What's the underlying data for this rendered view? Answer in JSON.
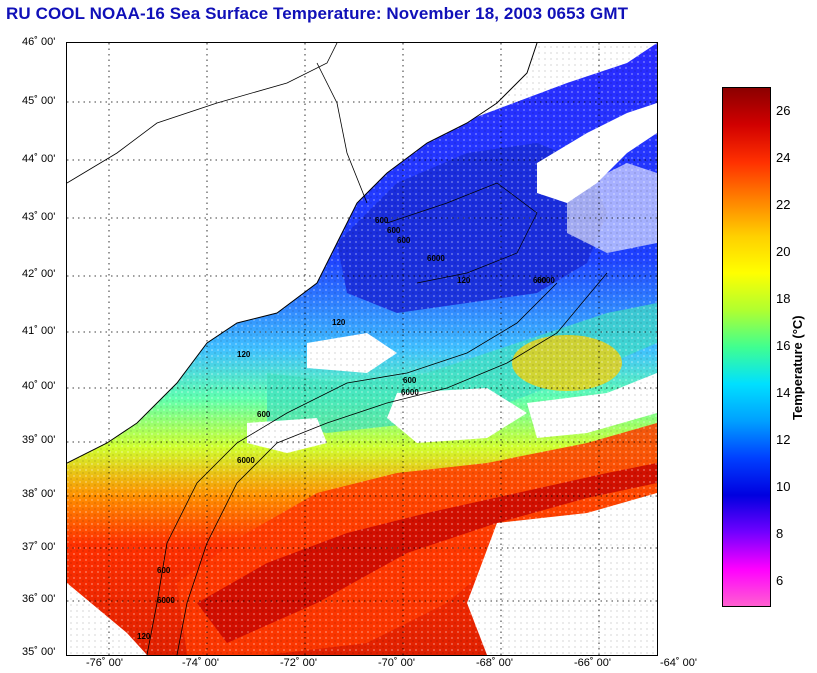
{
  "title": "RU COOL  NOAA-16  Sea Surface Temperature:  November 18, 2003 0653 GMT",
  "latitude_labels": [
    "46˚ 00'",
    "45˚ 00'",
    "44˚ 00'",
    "43˚ 00'",
    "42˚ 00'",
    "41˚ 00'",
    "40˚ 00'",
    "39˚ 00'",
    "38˚ 00'",
    "37˚ 00'",
    "36˚ 00'",
    "35˚ 00'"
  ],
  "longitude_labels": [
    "-76˚ 00'",
    "-74˚ 00'",
    "-72˚ 00'",
    "-70˚ 00'",
    "-68˚ 00'",
    "-66˚ 00'",
    "-64˚ 00'"
  ],
  "colorbar": {
    "title": "Temperature (°C)",
    "min": 5,
    "max": 27,
    "ticks": [
      "26",
      "24",
      "22",
      "20",
      "18",
      "16",
      "14",
      "12",
      "10",
      "8",
      "6"
    ],
    "colors": [
      "#8b0000",
      "#d10000",
      "#ff3000",
      "#ff8000",
      "#ffd000",
      "#ffff00",
      "#b0ff30",
      "#40ff90",
      "#00e0ff",
      "#00a0ff",
      "#0040ff",
      "#0000e0",
      "#7000ff",
      "#ff00ff",
      "#ff60d0"
    ]
  },
  "isobath_labels": [
    "120",
    "600",
    "6000",
    "600",
    "6000",
    "120",
    "600",
    "6000",
    "600",
    "120",
    "600",
    "6000",
    "600",
    "600",
    "6000",
    "120"
  ],
  "colors": {
    "title": "#1010b8",
    "land": "#ffffff",
    "cloud": "#ffffff",
    "cold_water": "#2a3cf0",
    "warm_water": "#e02000"
  }
}
